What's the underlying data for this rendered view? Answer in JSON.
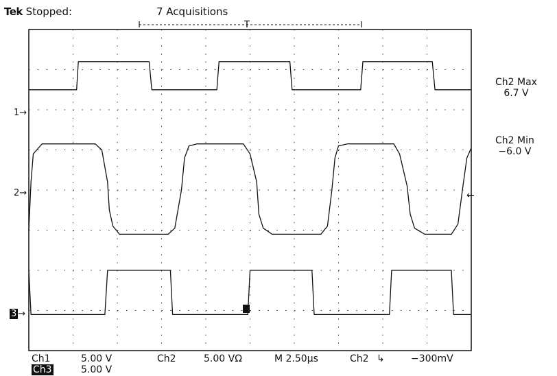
{
  "header": {
    "brand": "Tek",
    "status": "Stopped:",
    "acquisitions": "7 Acquisitions",
    "trigger_marker": "T"
  },
  "channel_markers": {
    "ch1": "1",
    "ch2": "2",
    "ch3": "3"
  },
  "measurements": {
    "ch2_max_label": "Ch2 Max",
    "ch2_max_value": "6.7 V",
    "ch2_min_label": "Ch2 Min",
    "ch2_min_value": "−6.0 V"
  },
  "footer": {
    "ch1_label": "Ch1",
    "ch1_scale": "5.00 V",
    "ch2_label": "Ch2",
    "ch2_scale": "5.00 VΩ",
    "timebase": "M 2.50µs",
    "trig_source": "Ch2",
    "trig_slope": "↳",
    "trig_level": "−300mV",
    "ch3_label": "Ch3",
    "ch3_scale": "5.00 V"
  },
  "chart_data": {
    "type": "line",
    "x_divisions": 10,
    "y_divisions": 8,
    "x_unit": "µs",
    "x_per_div": 2.5,
    "grid": true,
    "series": [
      {
        "name": "Ch1",
        "points": [
          [
            0,
            0.5
          ],
          [
            1.08,
            0.5
          ],
          [
            1.12,
            1.2
          ],
          [
            2.72,
            1.2
          ],
          [
            2.78,
            0.5
          ],
          [
            4.25,
            0.5
          ],
          [
            4.3,
            1.2
          ],
          [
            5.9,
            1.2
          ],
          [
            5.95,
            0.5
          ],
          [
            7.5,
            0.5
          ],
          [
            7.55,
            1.2
          ],
          [
            9.12,
            1.2
          ],
          [
            9.18,
            0.5
          ],
          [
            10,
            0.5
          ]
        ]
      },
      {
        "name": "Ch2",
        "points": [
          [
            0,
            -1.0
          ],
          [
            0.05,
            0.2
          ],
          [
            0.1,
            0.9
          ],
          [
            0.3,
            1.15
          ],
          [
            1.5,
            1.15
          ],
          [
            1.65,
            1.0
          ],
          [
            1.78,
            0.2
          ],
          [
            1.82,
            -0.5
          ],
          [
            1.9,
            -0.9
          ],
          [
            2.05,
            -1.1
          ],
          [
            3.15,
            -1.1
          ],
          [
            3.3,
            -0.95
          ],
          [
            3.45,
            0
          ],
          [
            3.52,
            0.8
          ],
          [
            3.62,
            1.1
          ],
          [
            3.8,
            1.15
          ],
          [
            4.85,
            1.15
          ],
          [
            5.0,
            0.9
          ],
          [
            5.15,
            0.2
          ],
          [
            5.2,
            -0.6
          ],
          [
            5.3,
            -0.95
          ],
          [
            5.5,
            -1.1
          ],
          [
            6.6,
            -1.1
          ],
          [
            6.75,
            -0.9
          ],
          [
            6.85,
            0
          ],
          [
            6.92,
            0.8
          ],
          [
            7.0,
            1.1
          ],
          [
            7.2,
            1.15
          ],
          [
            8.25,
            1.15
          ],
          [
            8.38,
            0.9
          ],
          [
            8.55,
            0.1
          ],
          [
            8.62,
            -0.6
          ],
          [
            8.72,
            -0.95
          ],
          [
            8.95,
            -1.1
          ],
          [
            9.55,
            -1.1
          ],
          [
            9.7,
            -0.85
          ],
          [
            9.8,
            0
          ],
          [
            9.9,
            0.8
          ],
          [
            10,
            1.05
          ]
        ]
      },
      {
        "name": "Ch3",
        "points": [
          [
            0,
            1.0
          ],
          [
            0.05,
            -0.1
          ],
          [
            1.72,
            -0.1
          ],
          [
            1.78,
            1.0
          ],
          [
            3.2,
            1.0
          ],
          [
            3.25,
            -0.1
          ],
          [
            4.95,
            -0.1
          ],
          [
            5.0,
            1.0
          ],
          [
            6.4,
            1.0
          ],
          [
            6.45,
            -0.1
          ],
          [
            8.15,
            -0.1
          ],
          [
            8.2,
            1.0
          ],
          [
            9.55,
            1.0
          ],
          [
            9.6,
            -0.1
          ],
          [
            10,
            -0.1
          ]
        ]
      }
    ]
  }
}
